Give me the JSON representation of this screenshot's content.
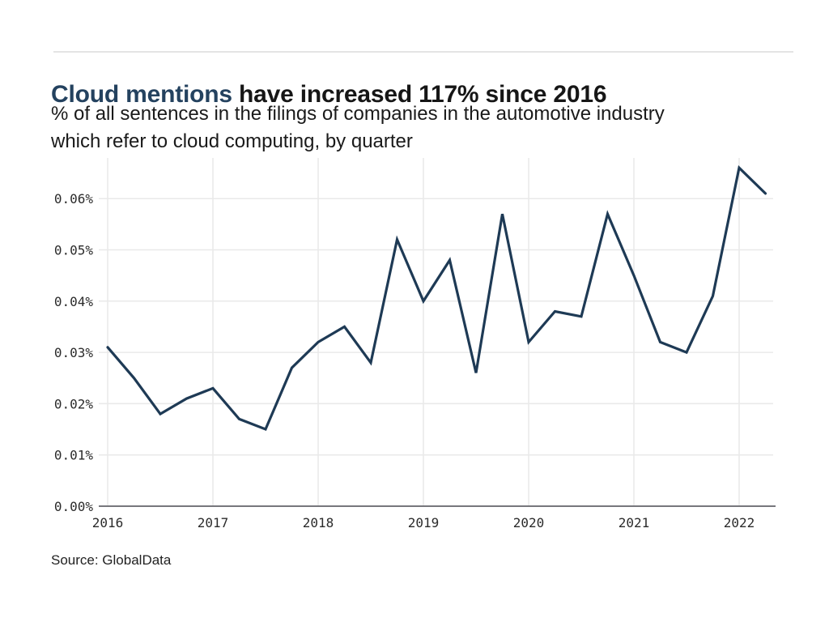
{
  "header": {
    "title_highlight": "Cloud mentions",
    "title_rest": "have increased 117% since 2016",
    "subtitle_line1": "% of all sentences in the filings of companies in the automotive industry",
    "subtitle_line2": "which refer to cloud computing, by quarter"
  },
  "footer": {
    "source": "Source: GlobalData"
  },
  "colors": {
    "title_accent": "#24425f",
    "title_text": "#161616",
    "line": "#1e3a55",
    "grid": "#e9e9e9",
    "axis": "#77777c",
    "tick_text": "#2b2b2b",
    "divider": "#e4e4e4"
  },
  "chart_data": {
    "type": "line",
    "title": "Cloud mentions have increased 117% since 2016",
    "subtitle": "% of all sentences in the filings of companies in the automotive industry which refer to cloud computing, by quarter",
    "x": [
      "2016 Q1",
      "2016 Q2",
      "2016 Q3",
      "2016 Q4",
      "2017 Q1",
      "2017 Q2",
      "2017 Q3",
      "2017 Q4",
      "2018 Q1",
      "2018 Q2",
      "2018 Q3",
      "2018 Q4",
      "2019 Q1",
      "2019 Q2",
      "2019 Q3",
      "2019 Q4",
      "2020 Q1",
      "2020 Q2",
      "2020 Q3",
      "2020 Q4",
      "2021 Q1",
      "2021 Q2",
      "2021 Q3",
      "2021 Q4",
      "2022 Q1",
      "2022 Q2"
    ],
    "values": [
      0.031,
      0.025,
      0.018,
      0.021,
      0.023,
      0.017,
      0.015,
      0.027,
      0.032,
      0.035,
      0.028,
      0.052,
      0.04,
      0.048,
      0.026,
      0.057,
      0.032,
      0.038,
      0.037,
      0.057,
      0.045,
      0.032,
      0.03,
      0.041,
      0.066,
      0.061
    ],
    "unit": "%",
    "xlabel": "",
    "ylabel": "",
    "x_tick_labels": [
      "2016",
      "2017",
      "2018",
      "2019",
      "2020",
      "2021",
      "2022"
    ],
    "y_ticks": [
      0.0,
      0.01,
      0.02,
      0.03,
      0.04,
      0.05,
      0.06
    ],
    "y_tick_labels": [
      "0.00%",
      "0.01%",
      "0.02%",
      "0.03%",
      "0.04%",
      "0.05%",
      "0.06%"
    ],
    "ylim": [
      0,
      0.068
    ],
    "grid": "on",
    "legend": "none",
    "source": "Source: GlobalData"
  }
}
